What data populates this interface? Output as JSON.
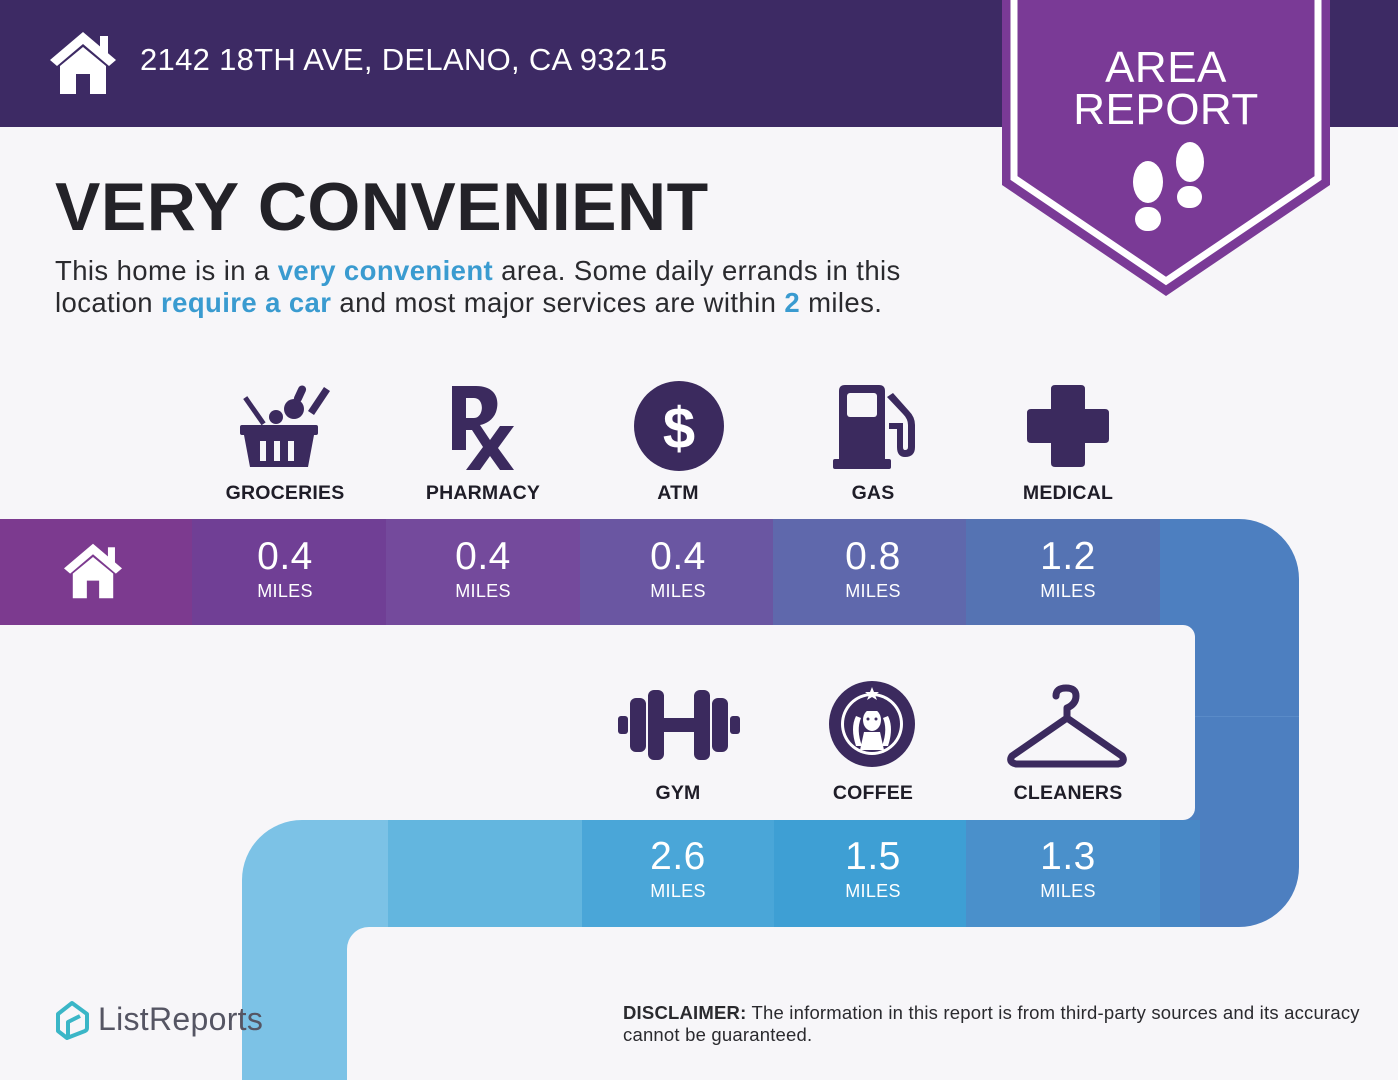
{
  "header": {
    "address": "2142 18TH AVE, DELANO, CA 93215",
    "icon": "home-icon",
    "bg_color": "#3d2a64"
  },
  "badge": {
    "line1": "AREA",
    "line2": "REPORT",
    "icon": "footprints-icon",
    "color": "#7a3a96"
  },
  "headline": "VERY CONVENIENT",
  "description": {
    "p1": "This home is in a ",
    "h1": "very convenient",
    "p2": " area. Some daily errands in this location ",
    "h2": "require a car",
    "p3": " and most major services are within ",
    "h3": "2",
    "p4": " miles."
  },
  "row1": [
    {
      "label": "GROCERIES",
      "icon": "grocery-basket-icon",
      "value": "0.4",
      "unit": "MILES"
    },
    {
      "label": "PHARMACY",
      "icon": "rx-icon",
      "value": "0.4",
      "unit": "MILES"
    },
    {
      "label": "ATM",
      "icon": "dollar-icon",
      "value": "0.4",
      "unit": "MILES"
    },
    {
      "label": "GAS",
      "icon": "gas-pump-icon",
      "value": "0.8",
      "unit": "MILES"
    },
    {
      "label": "MEDICAL",
      "icon": "medical-cross-icon",
      "value": "1.2",
      "unit": "MILES"
    }
  ],
  "row2": [
    {
      "label": "GYM",
      "icon": "dumbbell-icon",
      "value": "2.6",
      "unit": "MILES"
    },
    {
      "label": "COFFEE",
      "icon": "starbucks-logo-icon",
      "value": "1.5",
      "unit": "MILES"
    },
    {
      "label": "CLEANERS",
      "icon": "hanger-icon",
      "value": "1.3",
      "unit": "MILES"
    }
  ],
  "logo_text": "ListReports",
  "disclaimer": {
    "label": "DISCLAIMER:",
    "text": " The information in this report is from third-party sources and its accuracy cannot be guaranteed."
  },
  "colors": {
    "highlight": "#3a9bd0",
    "icon_dark": "#3b2a5e"
  }
}
